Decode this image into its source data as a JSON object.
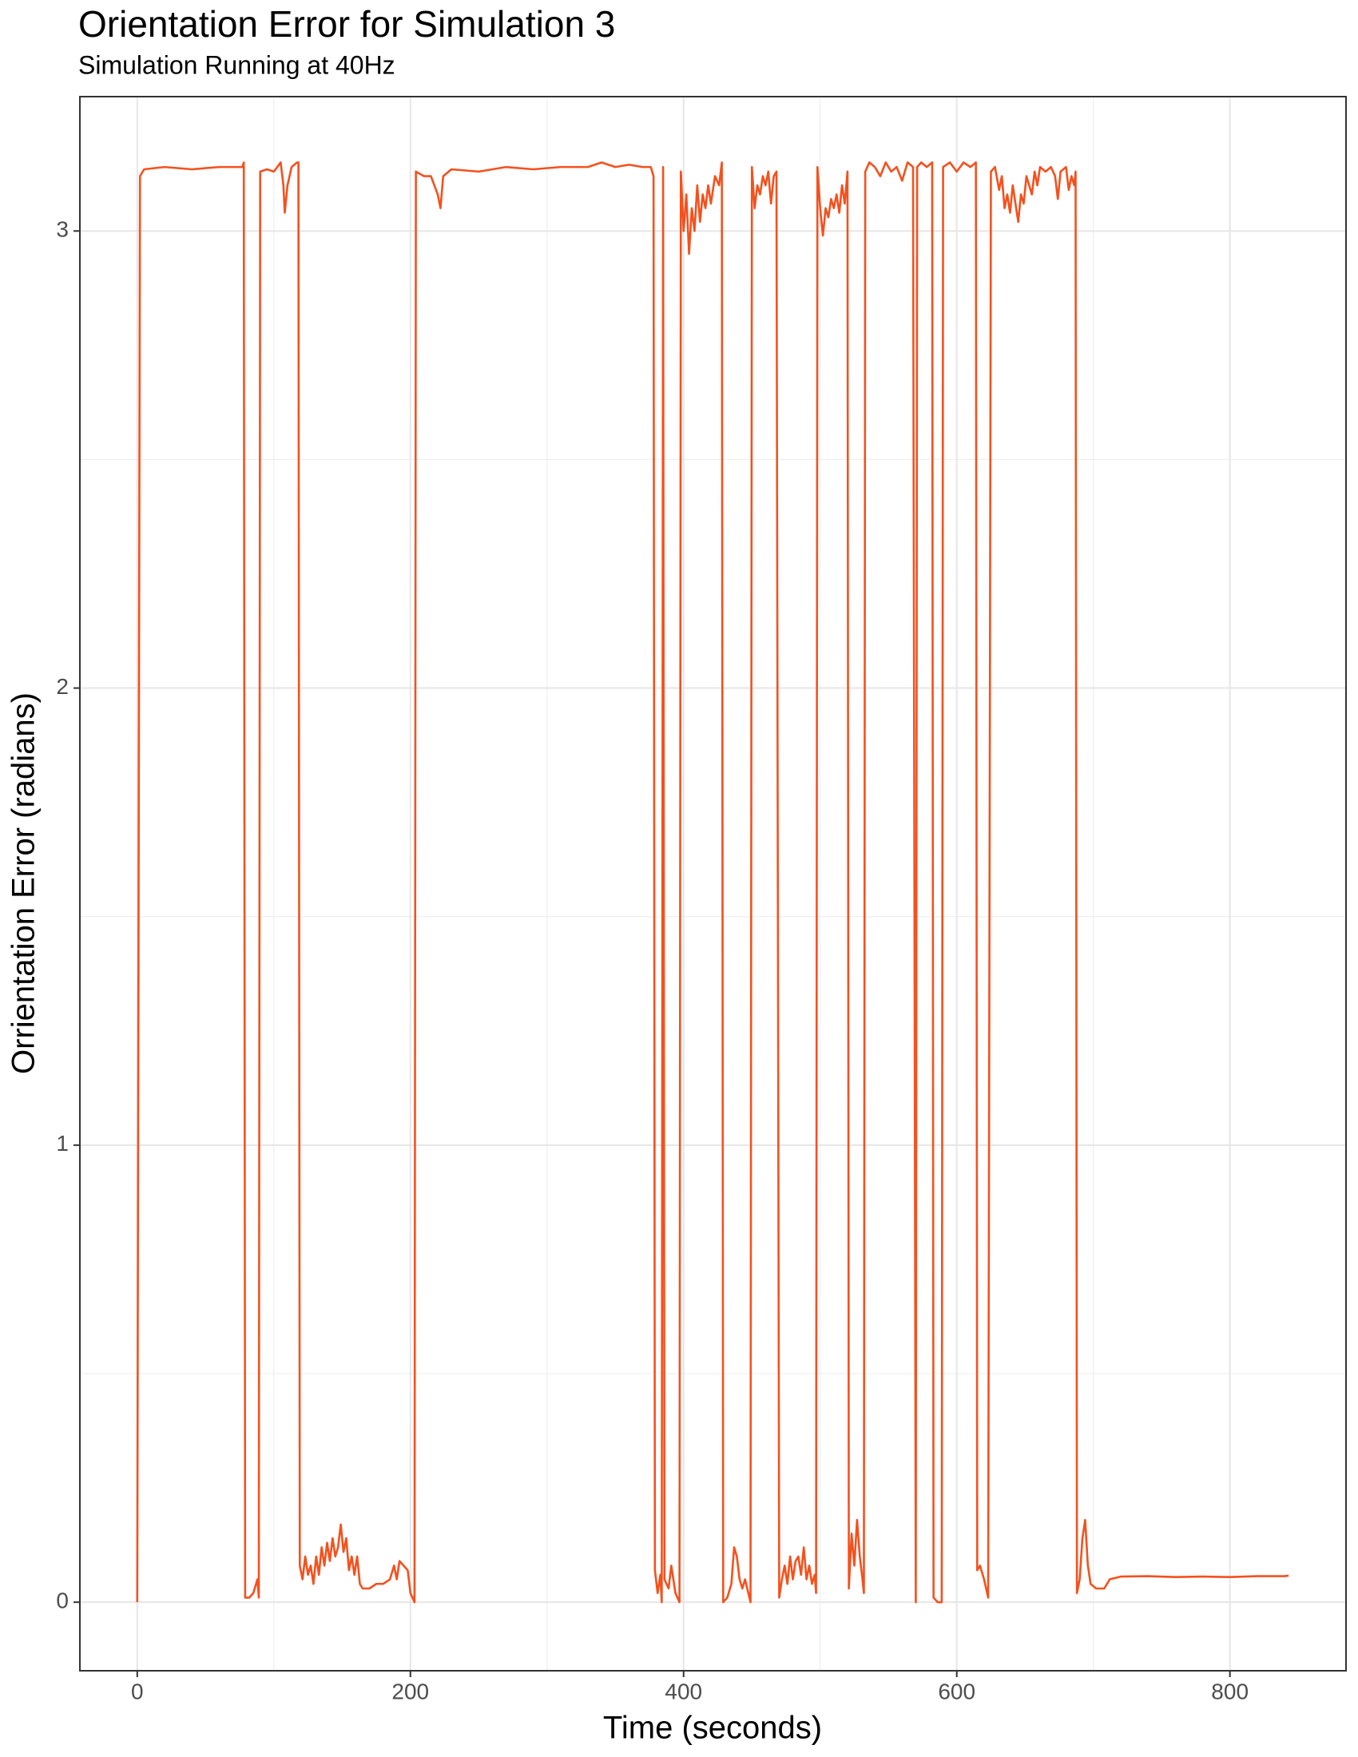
{
  "chart_data": {
    "type": "line",
    "title": "Orientation Error for Simulation 3",
    "subtitle": "Simulation Running at 40Hz",
    "x_label": "Time (seconds)",
    "y_label": "Orrientation Error (radians)",
    "xlim": [
      -42,
      885
    ],
    "ylim": [
      -0.15,
      3.294
    ],
    "xticks": [
      0,
      200,
      400,
      600,
      800
    ],
    "yticks": [
      0,
      1,
      2,
      3
    ],
    "x_minor_grid": [
      100,
      300,
      500,
      700
    ],
    "y_minor_grid": [
      0.5,
      1.5,
      2.5
    ],
    "grid": true,
    "series": [
      {
        "color": "#f4511e",
        "x": [
          0,
          2,
          5,
          20,
          40,
          60,
          77,
          78,
          79,
          82,
          85,
          88,
          89,
          90,
          95,
          100,
          105,
          107,
          108,
          110,
          113,
          117,
          118,
          119,
          121,
          123,
          125,
          127,
          129,
          131,
          133,
          135,
          137,
          139,
          141,
          143,
          145,
          147,
          149,
          151,
          153,
          155,
          157,
          159,
          161,
          163,
          165,
          170,
          175,
          180,
          185,
          188,
          190,
          192,
          195,
          198,
          200,
          203,
          204,
          210,
          215,
          220,
          222,
          224,
          230,
          250,
          270,
          290,
          310,
          330,
          340,
          350,
          360,
          370,
          376,
          378,
          379,
          381,
          383,
          384,
          385,
          386,
          389,
          391,
          394,
          397,
          398,
          400,
          402,
          404,
          406,
          408,
          410,
          412,
          414,
          416,
          418,
          420,
          423,
          426,
          428,
          429,
          432,
          435,
          437,
          439,
          441,
          443,
          445,
          449,
          450,
          452,
          454,
          456,
          458,
          460,
          462,
          464,
          466,
          468,
          470,
          472,
          474,
          476,
          478,
          480,
          482,
          484,
          486,
          488,
          490,
          492,
          494,
          496,
          497,
          498,
          500,
          502,
          504,
          506,
          508,
          510,
          512,
          514,
          516,
          518,
          520,
          521,
          523,
          525,
          527,
          529,
          531,
          532,
          533,
          536,
          540,
          544,
          548,
          552,
          556,
          560,
          564,
          568,
          570,
          571,
          574,
          578,
          582,
          583,
          586,
          589,
          590,
          595,
          600,
          605,
          610,
          614,
          615,
          617,
          620,
          623,
          625,
          628,
          631,
          633,
          635,
          637,
          639,
          641,
          643,
          645,
          647,
          649,
          651,
          653,
          655,
          657,
          659,
          661,
          665,
          669,
          672,
          674,
          676,
          680,
          682,
          684,
          686,
          687,
          688,
          690,
          692,
          694,
          696,
          698,
          702,
          708,
          712,
          720,
          740,
          760,
          780,
          800,
          820,
          840,
          843
        ],
        "values": [
          0,
          3.12,
          3.135,
          3.14,
          3.135,
          3.14,
          3.14,
          3.15,
          0.01,
          0.01,
          0.02,
          0.05,
          0.01,
          3.13,
          3.135,
          3.13,
          3.15,
          3.1,
          3.04,
          3.1,
          3.14,
          3.15,
          3.15,
          0.08,
          0.05,
          0.1,
          0.06,
          0.08,
          0.04,
          0.1,
          0.06,
          0.12,
          0.08,
          0.13,
          0.09,
          0.14,
          0.1,
          0.12,
          0.17,
          0.11,
          0.14,
          0.07,
          0.1,
          0.06,
          0.1,
          0.04,
          0.03,
          0.03,
          0.04,
          0.04,
          0.05,
          0.08,
          0.05,
          0.09,
          0.08,
          0.07,
          0.02,
          0,
          3.13,
          3.12,
          3.12,
          3.08,
          3.05,
          3.12,
          3.135,
          3.13,
          3.14,
          3.135,
          3.14,
          3.14,
          3.15,
          3.14,
          3.145,
          3.14,
          3.14,
          3.12,
          0.07,
          0.02,
          0.06,
          0,
          3.14,
          0.05,
          0.03,
          0.08,
          0.02,
          0,
          3.13,
          3,
          3.08,
          2.95,
          3.05,
          3,
          3.1,
          3.02,
          3.08,
          3.05,
          3.1,
          3.06,
          3.12,
          3.1,
          3.15,
          0,
          0.01,
          0.04,
          0.12,
          0.1,
          0.05,
          0.03,
          0.05,
          0,
          3.14,
          3.05,
          3.1,
          3.08,
          3.12,
          3.1,
          3.13,
          3.06,
          3.12,
          3.13,
          0.01,
          0.05,
          0.08,
          0.04,
          0.1,
          0.05,
          0.09,
          0.1,
          0.06,
          0.12,
          0.05,
          0.08,
          0.04,
          0.06,
          0.02,
          3.14,
          3.05,
          2.99,
          3.05,
          3.03,
          3.07,
          3.05,
          3.08,
          3.04,
          3.1,
          3.06,
          3.13,
          0.03,
          0.15,
          0.08,
          0.18,
          0.1,
          0.05,
          0.02,
          3.13,
          3.15,
          3.14,
          3.12,
          3.15,
          3.13,
          3.14,
          3.11,
          3.15,
          3.14,
          0,
          3.14,
          3.15,
          3.14,
          3.15,
          0.01,
          0,
          0,
          3.14,
          3.15,
          3.13,
          3.15,
          3.14,
          3.15,
          0.07,
          0.08,
          0.05,
          0.01,
          3.13,
          3.14,
          3.09,
          3.12,
          3.05,
          3.08,
          3.04,
          3.1,
          3.06,
          3.02,
          3.08,
          3.06,
          3.12,
          3.1,
          3.08,
          3.13,
          3.1,
          3.14,
          3.13,
          3.14,
          3.12,
          3.07,
          3.13,
          3.14,
          3.09,
          3.12,
          3.1,
          3.13,
          0.02,
          0.05,
          0.14,
          0.18,
          0.08,
          0.04,
          0.03,
          0.03,
          0.05,
          0.056,
          0.057,
          0.055,
          0.056,
          0.055,
          0.057,
          0.057,
          0.058
        ]
      }
    ]
  }
}
